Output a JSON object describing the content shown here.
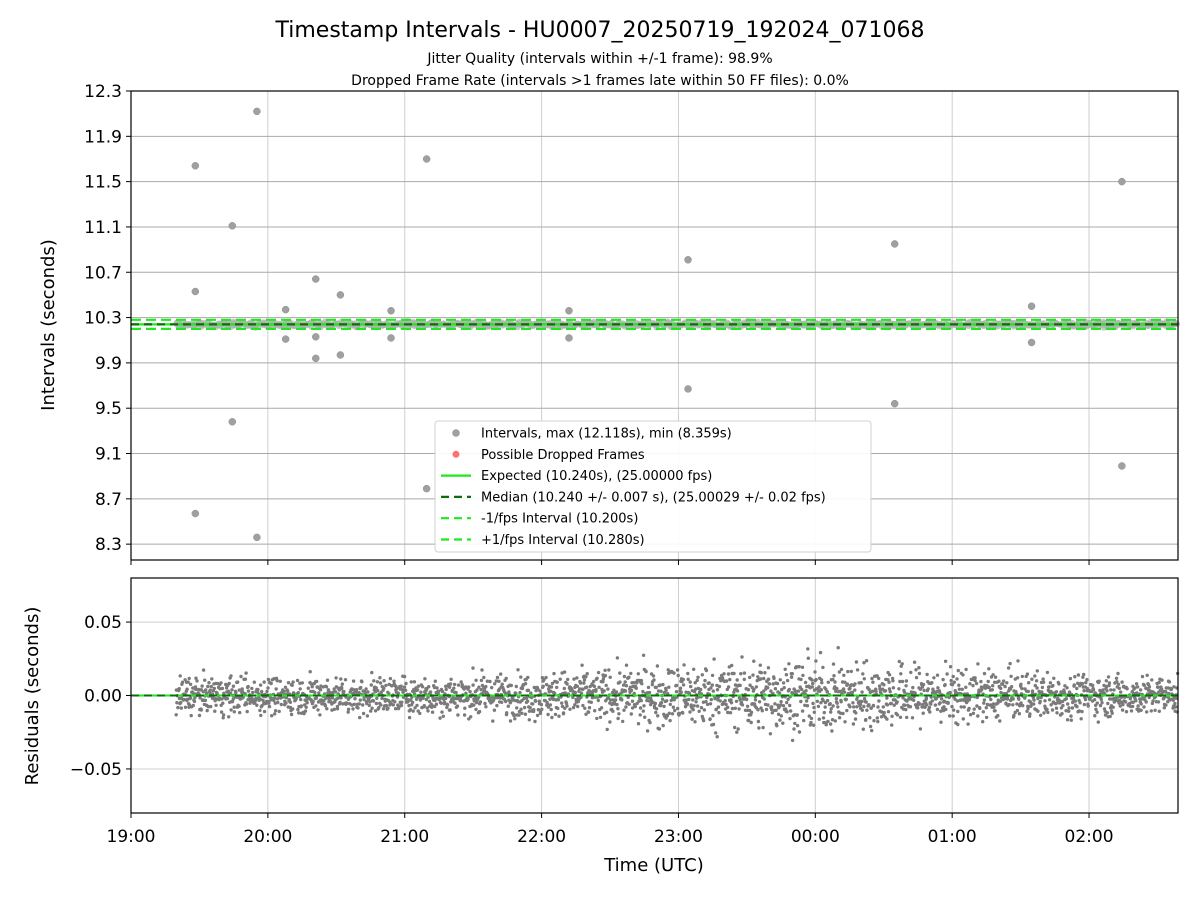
{
  "chart_data": [
    {
      "type": "scatter",
      "title": "Timestamp Intervals - HU0007_20250719_192024_071068",
      "subtitle_1": "Jitter Quality (intervals within +/-1 frame): 98.9%",
      "subtitle_2": "Dropped Frame Rate (intervals >1 frames late within 50 FF files): 0.0%",
      "ylabel": "Intervals (seconds)",
      "ylim": [
        8.16,
        12.3
      ],
      "y_ticks": [
        "8.3",
        "8.7",
        "9.1",
        "9.5",
        "9.9",
        "10.3",
        "10.7",
        "11.1",
        "11.5",
        "11.9",
        "12.3"
      ],
      "x_ticks": [
        "19:00",
        "20:00",
        "21:00",
        "22:00",
        "23:00",
        "00:00",
        "01:00",
        "02:00"
      ],
      "xlim_hours": [
        0,
        7.65
      ],
      "grid": true,
      "legend_position": "bottom-center",
      "legend": [
        {
          "label": "Intervals, max (12.118s), min (8.359s)",
          "marker": "gray-dot"
        },
        {
          "label": "Possible Dropped Frames",
          "marker": "red-dot"
        },
        {
          "label": "Expected (10.240s), (25.00000 fps)",
          "marker": "green-line"
        },
        {
          "label": "Median (10.240 +/- 0.007 s), (25.00029 +/- 0.02 fps)",
          "marker": "darkgreen-dash"
        },
        {
          "label": "-1/fps Interval (10.200s)",
          "marker": "green-dash"
        },
        {
          "label": "+1/fps Interval (10.280s)",
          "marker": "green-dash"
        }
      ],
      "expected": 10.24,
      "median": 10.24,
      "lower": 10.2,
      "upper": 10.28,
      "outliers": [
        {
          "x": 0.47,
          "y": 11.64
        },
        {
          "x": 0.47,
          "y": 10.53
        },
        {
          "x": 0.47,
          "y": 8.57
        },
        {
          "x": 0.74,
          "y": 11.11
        },
        {
          "x": 0.74,
          "y": 9.38
        },
        {
          "x": 0.92,
          "y": 12.12
        },
        {
          "x": 0.92,
          "y": 8.36
        },
        {
          "x": 1.13,
          "y": 10.37
        },
        {
          "x": 1.13,
          "y": 10.11
        },
        {
          "x": 1.35,
          "y": 10.64
        },
        {
          "x": 1.35,
          "y": 10.13
        },
        {
          "x": 1.35,
          "y": 9.94
        },
        {
          "x": 1.53,
          "y": 10.5
        },
        {
          "x": 1.53,
          "y": 9.97
        },
        {
          "x": 1.9,
          "y": 10.36
        },
        {
          "x": 1.9,
          "y": 10.12
        },
        {
          "x": 2.16,
          "y": 11.7
        },
        {
          "x": 2.16,
          "y": 8.79
        },
        {
          "x": 3.2,
          "y": 10.36
        },
        {
          "x": 3.2,
          "y": 10.12
        },
        {
          "x": 4.07,
          "y": 10.81
        },
        {
          "x": 4.07,
          "y": 9.67
        },
        {
          "x": 5.58,
          "y": 10.95
        },
        {
          "x": 5.58,
          "y": 9.54
        },
        {
          "x": 6.58,
          "y": 10.4
        },
        {
          "x": 6.58,
          "y": 10.08
        },
        {
          "x": 7.24,
          "y": 11.5
        },
        {
          "x": 7.24,
          "y": 8.99
        }
      ],
      "series_start_hours": 0.33,
      "series_end_hours": 7.65,
      "series_count": 2600
    },
    {
      "type": "scatter",
      "ylabel": "Residuals (seconds)",
      "xlabel": "Time (UTC)",
      "ylim": [
        -0.08,
        0.08
      ],
      "y_ticks": [
        {
          "value": 0.05,
          "label": "0.05"
        },
        {
          "value": 0.0,
          "label": "0.00"
        },
        {
          "value": -0.05,
          "label": "−0.05"
        }
      ],
      "x_ticks": [
        "19:00",
        "20:00",
        "21:00",
        "22:00",
        "23:00",
        "00:00",
        "01:00",
        "02:00"
      ],
      "xlim_hours": [
        0,
        7.65
      ],
      "grid": true,
      "residual_spread_sd": 0.008,
      "residual_clip": 0.034,
      "series_count": 2600
    }
  ],
  "colors": {
    "points": "#7a7a7a",
    "outliers": "#a0a0a0",
    "expected": "#1ee81e",
    "median": "#0a6e0a",
    "bounds": "#1ee81e",
    "dropped": "#ff4040"
  }
}
